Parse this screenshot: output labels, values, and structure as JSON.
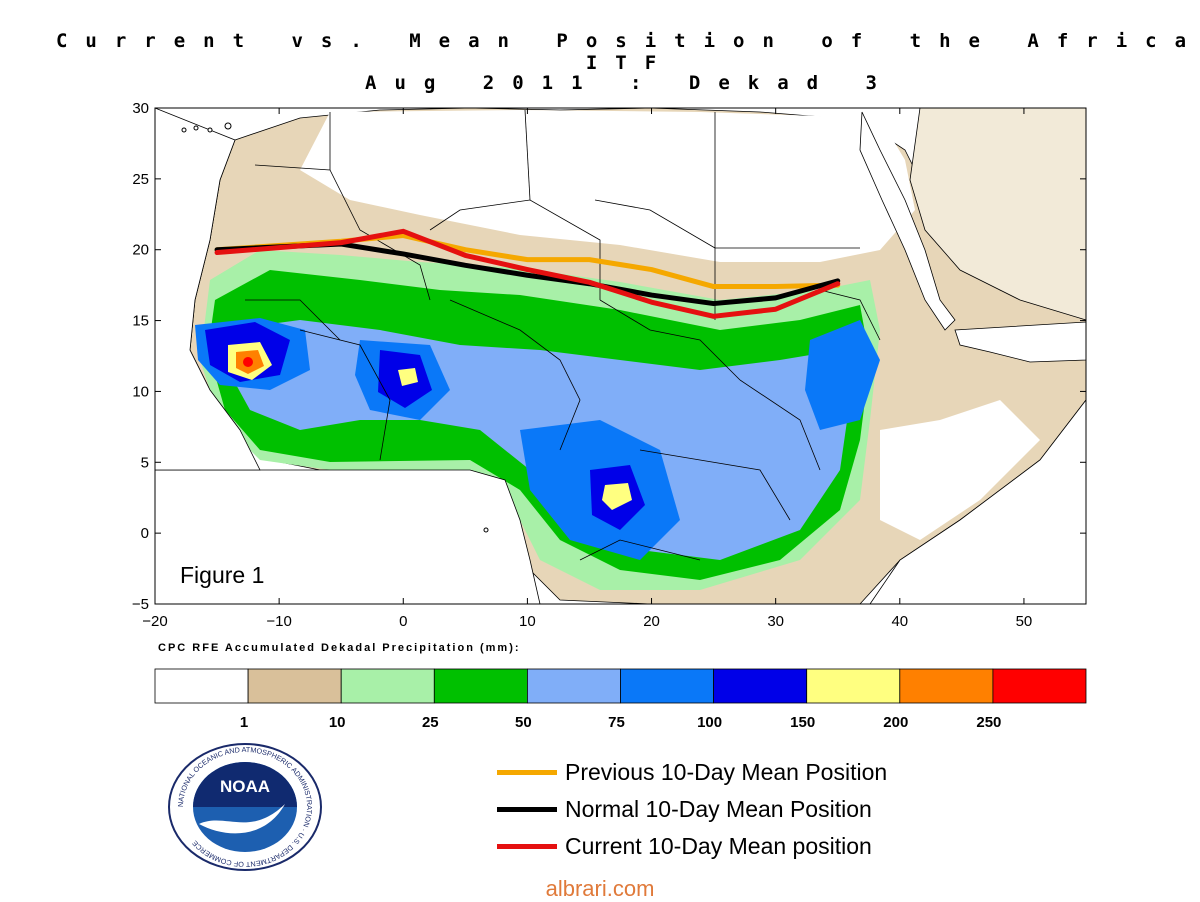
{
  "title": "Current vs. Mean Position of the Africa ITF",
  "subtitle": "Aug 2011 : Dekad 3",
  "figure_label": "Figure 1",
  "colorbar": {
    "title": "CPC RFE Accumulated Dekadal Precipitation (mm):",
    "colors": [
      "#ffffff",
      "#d9c09a",
      "#a8f0a8",
      "#00c000",
      "#80aef8",
      "#0a78f8",
      "#0000e8",
      "#ffff80",
      "#ff8000",
      "#ff0000"
    ],
    "tick_labels": [
      "1",
      "10",
      "25",
      "50",
      "75",
      "100",
      "150",
      "200",
      "250"
    ]
  },
  "logo_text": "NOAA",
  "logo_ring_text": "NATIONAL OCEANIC AND ATMOSPHERIC ADMINISTRATION · U.S. DEPARTMENT OF COMMERCE",
  "legend": [
    {
      "label": "Previous 10-Day Mean Position",
      "color": "#f5a800"
    },
    {
      "label": "Normal 10-Day Mean Position",
      "color": "#000000"
    },
    {
      "label": "Current 10-Day Mean position",
      "color": "#e51010"
    }
  ],
  "watermark": "albrari.com",
  "chart_data": {
    "type": "line",
    "xlim": [
      -20,
      55
    ],
    "ylim": [
      -5,
      30
    ],
    "x_ticks": [
      -20,
      -10,
      0,
      10,
      20,
      30,
      40,
      50
    ],
    "y_ticks": [
      -5,
      0,
      5,
      10,
      15,
      20,
      25,
      30
    ],
    "series": [
      {
        "name": "Previous 10-Day Mean Position",
        "color": "#f5a800",
        "x": [
          -15,
          -5,
          0,
          5,
          10,
          15,
          20,
          25,
          30,
          35
        ],
        "y": [
          20.0,
          20.6,
          21.0,
          20.0,
          19.3,
          19.3,
          18.6,
          17.4,
          17.4,
          17.5
        ]
      },
      {
        "name": "Normal 10-Day Mean Position",
        "color": "#000000",
        "x": [
          -15,
          -5,
          0,
          5,
          10,
          15,
          20,
          25,
          30,
          35
        ],
        "y": [
          20.0,
          20.4,
          19.7,
          18.9,
          18.2,
          17.6,
          16.8,
          16.2,
          16.6,
          17.8
        ]
      },
      {
        "name": "Current 10-Day Mean position",
        "color": "#e51010",
        "x": [
          -15,
          -5,
          0,
          5,
          10,
          15,
          20,
          25,
          30,
          35
        ],
        "y": [
          19.8,
          20.5,
          21.3,
          19.6,
          18.6,
          17.7,
          16.3,
          15.3,
          15.8,
          17.6
        ]
      }
    ]
  }
}
